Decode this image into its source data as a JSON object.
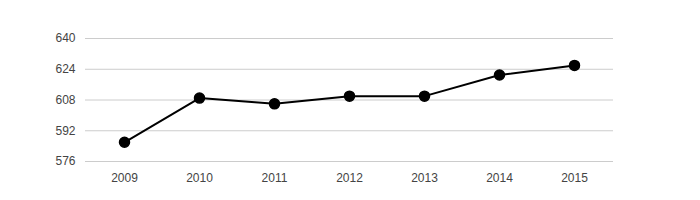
{
  "chart_data": {
    "type": "line",
    "categories": [
      "2009",
      "2010",
      "2011",
      "2012",
      "2013",
      "2014",
      "2015"
    ],
    "values": [
      586,
      609,
      606,
      610,
      610,
      621,
      626
    ],
    "color": "#000000",
    "marker": "circle",
    "ylim": [
      576,
      640
    ],
    "yticks": [
      576,
      592,
      608,
      624,
      640
    ],
    "grid": true
  }
}
